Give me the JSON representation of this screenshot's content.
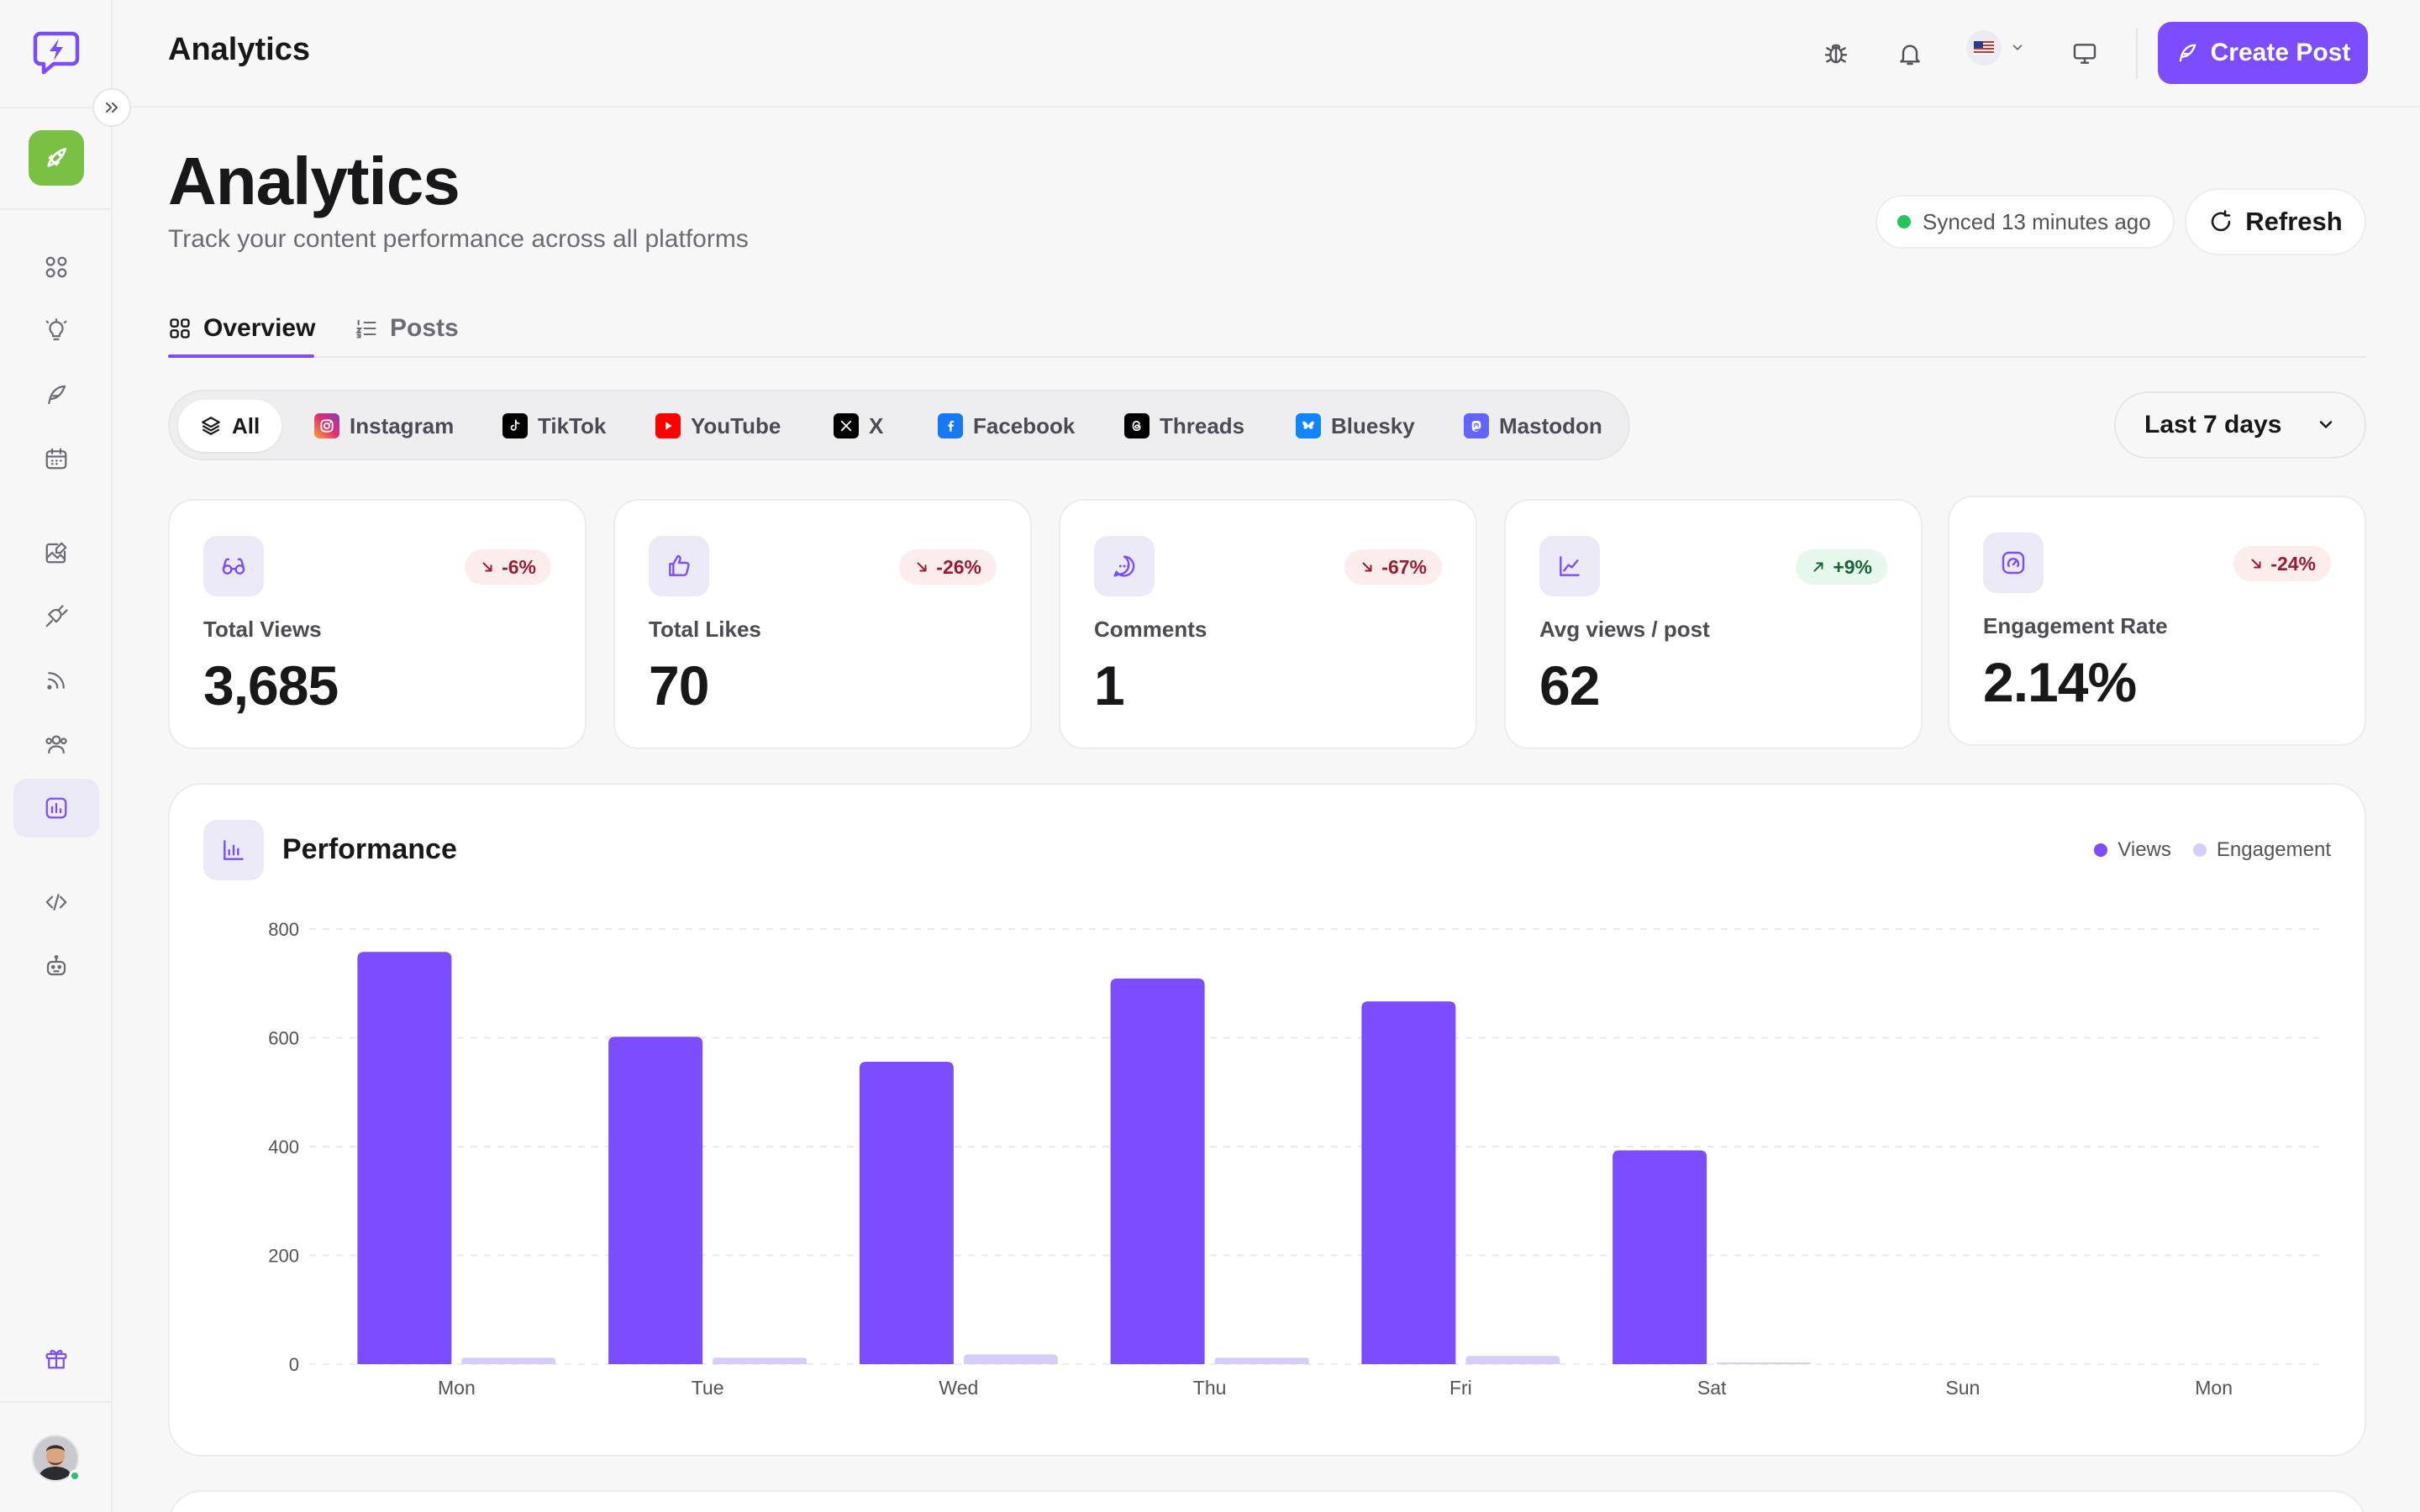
{
  "topbar": {
    "title": "Analytics",
    "create_post_label": "Create Post",
    "language": "US"
  },
  "header": {
    "title": "Analytics",
    "subtitle": "Track your content performance across all platforms",
    "sync_status": "Synced 13 minutes ago",
    "refresh_label": "Refresh"
  },
  "tabs": [
    {
      "label": "Overview",
      "active": true
    },
    {
      "label": "Posts",
      "active": false
    }
  ],
  "platforms": [
    {
      "label": "All",
      "icon": "layers-icon",
      "color": "#18181b",
      "active": true
    },
    {
      "label": "Instagram",
      "icon": "instagram-icon",
      "color": "#e1306c"
    },
    {
      "label": "TikTok",
      "icon": "tiktok-icon",
      "color": "#000000"
    },
    {
      "label": "YouTube",
      "icon": "youtube-icon",
      "color": "#ff0000"
    },
    {
      "label": "X",
      "icon": "x-icon",
      "color": "#000000"
    },
    {
      "label": "Facebook",
      "icon": "facebook-icon",
      "color": "#1877f2"
    },
    {
      "label": "Threads",
      "icon": "threads-icon",
      "color": "#000000"
    },
    {
      "label": "Bluesky",
      "icon": "bluesky-icon",
      "color": "#1185fe"
    },
    {
      "label": "Mastodon",
      "icon": "mastodon-icon",
      "color": "#6364ff"
    }
  ],
  "date_range": {
    "value": "Last 7 days"
  },
  "stats": [
    {
      "label": "Total Views",
      "value": "3,685",
      "change": "-6%",
      "trend": "down",
      "icon": "glasses-icon"
    },
    {
      "label": "Total Likes",
      "value": "70",
      "change": "-26%",
      "trend": "down",
      "icon": "thumbs-up-icon"
    },
    {
      "label": "Comments",
      "value": "1",
      "change": "-67%",
      "trend": "down",
      "icon": "comment-icon"
    },
    {
      "label": "Avg views / post",
      "value": "62",
      "change": "+9%",
      "trend": "up",
      "icon": "line-chart-icon"
    },
    {
      "label": "Engagement Rate",
      "value": "2.14%",
      "change": "-24%",
      "trend": "down",
      "icon": "gauge-icon"
    }
  ],
  "performance": {
    "title": "Performance",
    "legend": [
      "Views",
      "Engagement"
    ]
  },
  "colors": {
    "accent": "#7c4dff",
    "engagement": "#d8cdf8",
    "launch": "#7ac143"
  },
  "chart_data": {
    "type": "bar",
    "title": "Performance",
    "categories": [
      "Mon",
      "Tue",
      "Wed",
      "Thu",
      "Fri",
      "Sat",
      "Sun",
      "Mon"
    ],
    "series": [
      {
        "name": "Views",
        "values": [
          758,
          602,
          556,
          709,
          667,
          393,
          0,
          0
        ]
      },
      {
        "name": "Engagement",
        "values": [
          12,
          12,
          18,
          12,
          15,
          3,
          0,
          0
        ]
      }
    ],
    "yticks": [
      0,
      200,
      400,
      600,
      800
    ],
    "ylim": [
      0,
      800
    ],
    "grid": true,
    "legend_position": "top-right"
  }
}
